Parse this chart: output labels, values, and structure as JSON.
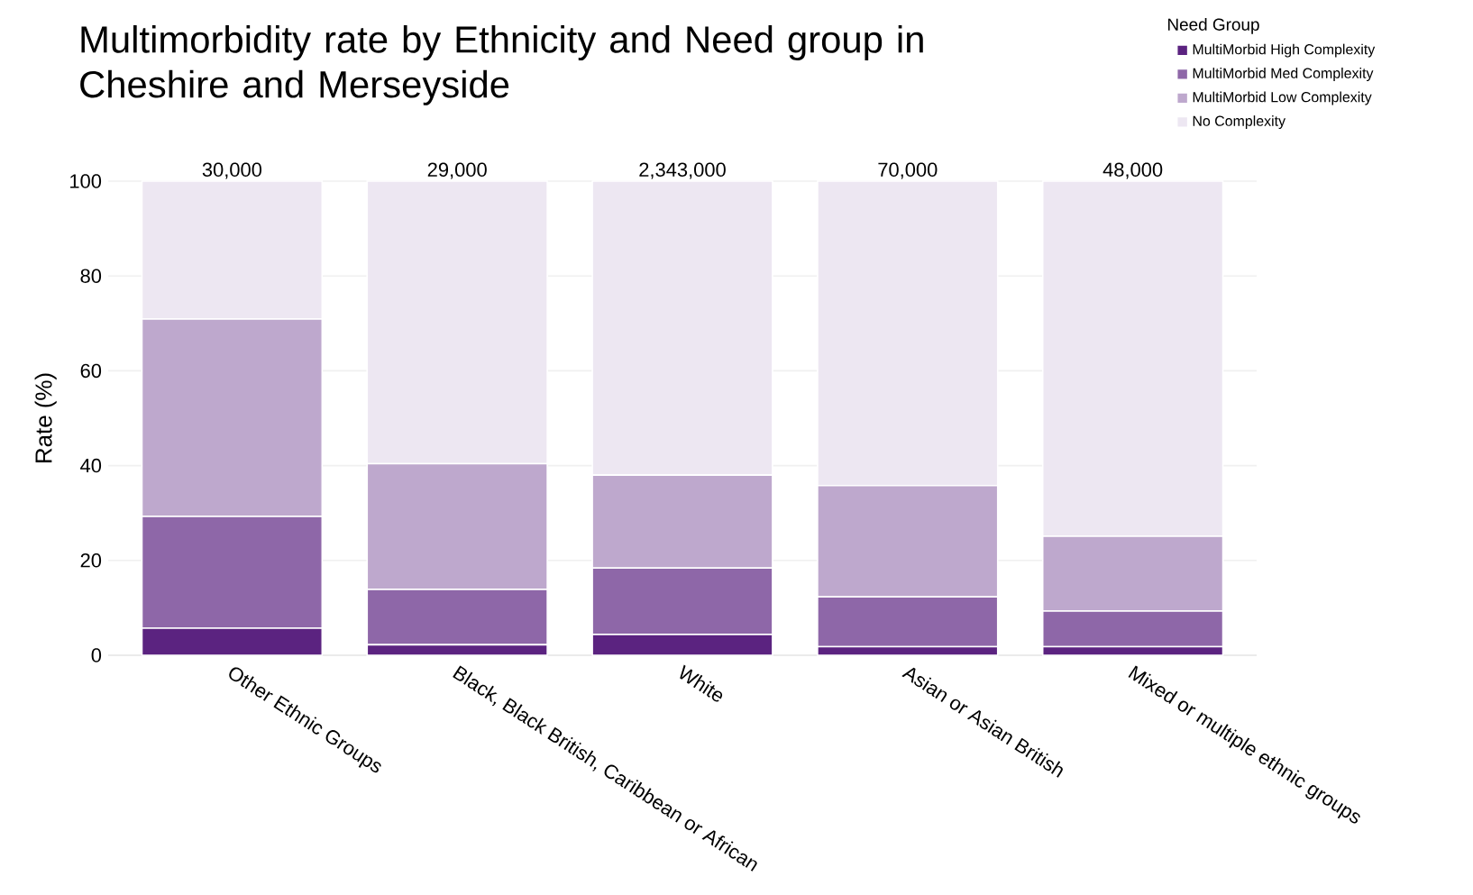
{
  "chart_data": {
    "type": "bar",
    "title": "Multimorbidity rate by Ethnicity and Need group in Cheshire and Merseyside",
    "ylabel": "Rate (%)",
    "legend_title": "Need Group",
    "categories": [
      "Other Ethnic Groups",
      "Black, Black British, Caribbean or African",
      "White",
      "Asian or Asian British",
      "Mixed or multiple ethnic groups"
    ],
    "stacked": true,
    "series": [
      {
        "name": "MultiMorbid High Complexity",
        "color": "#5b2380",
        "values": [
          5.7,
          2.2,
          4.4,
          1.8,
          1.8
        ]
      },
      {
        "name": "MultiMorbid Med Complexity",
        "color": "#8e67a8",
        "values": [
          23.6,
          11.7,
          14.0,
          10.5,
          7.5
        ]
      },
      {
        "name": "MultiMorbid Low Complexity",
        "color": "#bea8cd",
        "values": [
          41.6,
          26.5,
          19.6,
          23.5,
          15.8
        ]
      },
      {
        "name": "No Complexity",
        "color": "#ede7f2",
        "values": [
          29.1,
          59.6,
          62.0,
          64.2,
          74.9
        ]
      }
    ],
    "annotations": [
      {
        "text": "30,000",
        "x": "Other Ethnic Groups",
        "y": 100
      },
      {
        "text": "29,000",
        "x": "Black, Black British, Caribbean or African",
        "y": 100
      },
      {
        "text": "2,343,000",
        "x": "White",
        "y": 100
      },
      {
        "text": "70,000",
        "x": "Asian or Asian British",
        "y": 100
      },
      {
        "text": "48,000",
        "x": "Mixed or multiple ethnic groups",
        "y": 100
      }
    ],
    "ylim": [
      0,
      100
    ],
    "yticks": [
      0,
      20,
      40,
      60,
      80,
      100
    ],
    "grid": "y",
    "legend": "top right"
  }
}
